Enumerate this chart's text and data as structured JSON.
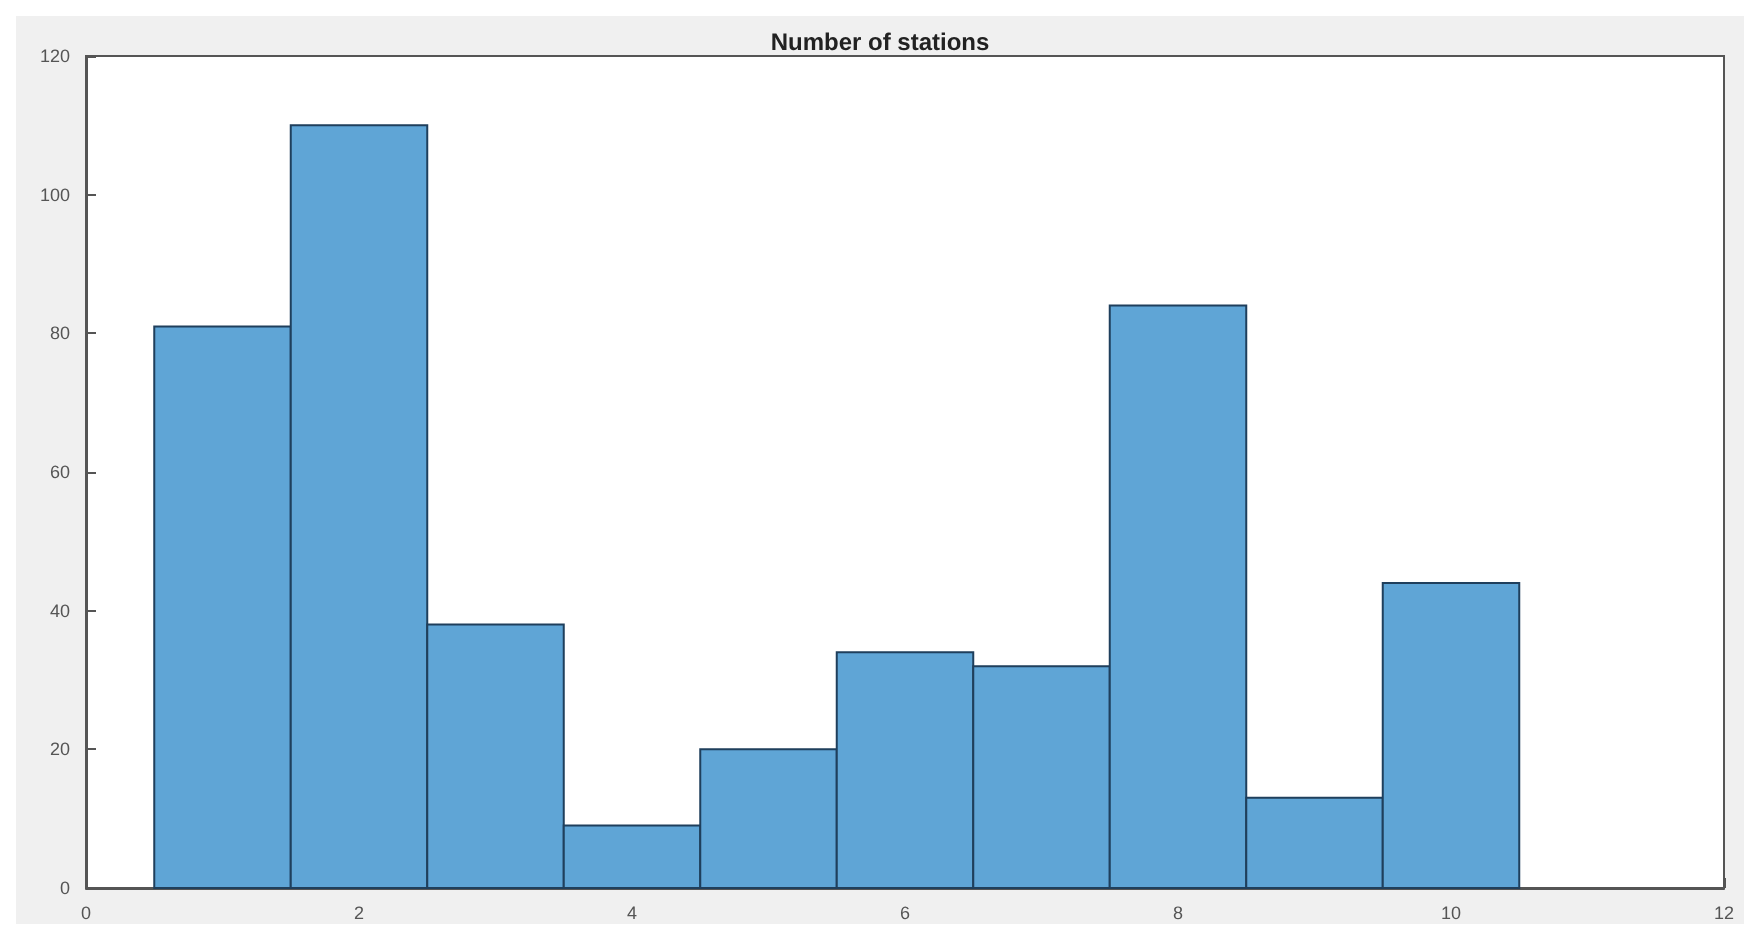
{
  "chart_data": {
    "type": "histogram",
    "title": "Number of stations",
    "bins": [
      0.5,
      1.5,
      2.5,
      3.5,
      4.5,
      5.5,
      6.5,
      7.5,
      8.5,
      9.5,
      10.5
    ],
    "values": [
      81,
      110,
      38,
      9,
      20,
      34,
      32,
      84,
      13,
      44
    ],
    "color": "#5fa5d6",
    "xlim": [
      0,
      12
    ],
    "xticks": [
      0,
      2,
      4,
      6,
      8,
      10,
      12
    ],
    "ylim": [
      0,
      120
    ],
    "yticks": [
      0,
      20,
      40,
      60,
      80,
      100,
      120
    ],
    "grid": false
  }
}
